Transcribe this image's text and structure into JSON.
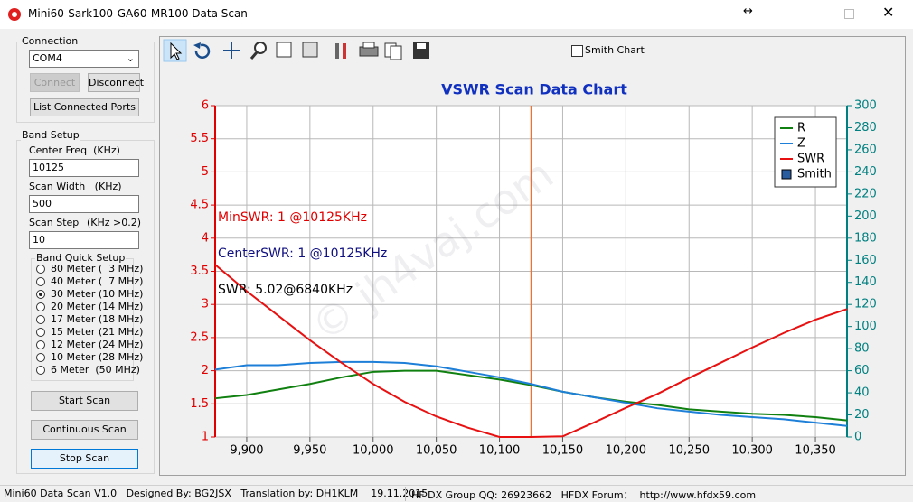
{
  "window": {
    "title": "Mini60-Sark100-GA60-MR100 Data Scan"
  },
  "connection": {
    "label": "Connection",
    "port": "COM4",
    "connect": "Connect",
    "disconnect": "Disconnect",
    "list_ports": "List Connected Ports"
  },
  "band_setup": {
    "label": "Band Setup",
    "center_freq_label": "Center Freq  (KHz)",
    "center_freq": "10125",
    "scan_width_label": "Scan Width   (KHz)",
    "scan_width": "500",
    "scan_step_label": "Scan Step",
    "scan_step_hint": "(KHz >0.2)",
    "scan_step": "10",
    "quick_label": "Band Quick Setup",
    "bands": [
      "80 Meter (  3 MHz)",
      "40 Meter (  7 MHz)",
      "30 Meter (10 MHz)",
      "20 Meter (14 MHz)",
      "17 Meter (18 MHz)",
      "15 Meter (21 MHz)",
      "12 Meter (24 MHz)",
      "10 Meter (28 MHz)",
      "6 Meter  (50 MHz)"
    ],
    "selected": 2,
    "start": "Start Scan",
    "continuous": "Continuous Scan",
    "stop": "Stop Scan"
  },
  "smith_chart": {
    "label": "Smith Chart",
    "checked": false
  },
  "chart_data": {
    "type": "line",
    "title": "VSWR Scan Data Chart",
    "grid": true,
    "x": [
      9875,
      9900,
      9925,
      9950,
      9975,
      10000,
      10025,
      10050,
      10075,
      10100,
      10125,
      10150,
      10175,
      10200,
      10225,
      10250,
      10275,
      10300,
      10325,
      10350,
      10375
    ],
    "xlim": [
      9875,
      10375
    ],
    "xticks": [
      {
        "value": 9900,
        "label": "9,900"
      },
      {
        "value": 9950,
        "label": "9,950"
      },
      {
        "value": 10000,
        "label": "10,000"
      },
      {
        "value": 10050,
        "label": "10,050"
      },
      {
        "value": 10100,
        "label": "10,100"
      },
      {
        "value": 10150,
        "label": "10,150"
      },
      {
        "value": 10200,
        "label": "10,200"
      },
      {
        "value": 10250,
        "label": "10,250"
      },
      {
        "value": 10300,
        "label": "10,300"
      },
      {
        "value": 10350,
        "label": "10,350"
      }
    ],
    "ylim": [
      1,
      6
    ],
    "yticks": [
      1,
      1.5,
      2,
      2.5,
      3,
      3.5,
      4,
      4.5,
      5,
      5.5,
      6
    ],
    "y_color": "#e00000",
    "y2lim": [
      0,
      300
    ],
    "y2ticks": [
      0,
      20,
      40,
      60,
      80,
      100,
      120,
      140,
      160,
      180,
      200,
      220,
      240,
      260,
      280,
      300
    ],
    "y2_color": "#008080",
    "series": [
      {
        "name": "R",
        "color": "#108010",
        "axis": "y2",
        "values": [
          35,
          38,
          43,
          48,
          54,
          59,
          60,
          60,
          56,
          52,
          47,
          41,
          36,
          32,
          29,
          25,
          23,
          21,
          20,
          18,
          15
        ]
      },
      {
        "name": "Z",
        "color": "#1e7fd8",
        "axis": "y2",
        "values": [
          61,
          65,
          65,
          67,
          68,
          68,
          67,
          64,
          59,
          54,
          48,
          41,
          36,
          31,
          26,
          23,
          20,
          18,
          16,
          13,
          10
        ]
      },
      {
        "name": "SWR",
        "color": "#e81010",
        "axis": "y",
        "values": [
          3.6,
          3.2,
          2.83,
          2.46,
          2.12,
          1.8,
          1.53,
          1.31,
          1.14,
          1,
          1,
          1.01,
          1.22,
          1.44,
          1.65,
          1.89,
          2.12,
          2.35,
          2.57,
          2.77,
          2.93
        ]
      }
    ],
    "smith_legend": "Smith",
    "cursor_x": 10125,
    "cursor_color": "#f07030",
    "annotations": [
      {
        "text": "MinSWR: 1 @10125KHz",
        "color": "#e00000"
      },
      {
        "text": "CenterSWR: 1 @10125KHz",
        "color": "#101080"
      },
      {
        "text": "SWR: 5.02@6840KHz",
        "color": "#000000"
      }
    ],
    "watermark": "© jh4vaj.com"
  },
  "status_bar": [
    "Mini60 Data Scan V1.0   Designed By: BG2JSX   Translation by: DH1KLM    19.11.2015",
    "HF DX Group QQ: 26923662   HFDX Forum：  http://www.hfdx59.com"
  ]
}
